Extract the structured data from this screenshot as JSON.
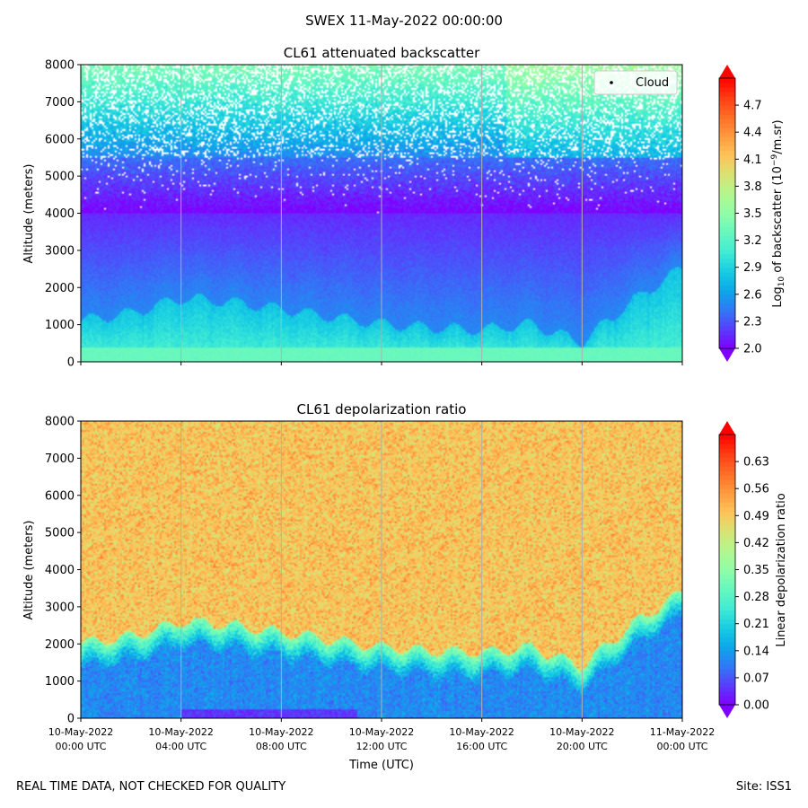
{
  "suptitle": "SWEX 11-May-2022 00:00:00",
  "footer": {
    "left": "REAL TIME DATA, NOT CHECKED FOR QUALITY",
    "right": "Site: ISS1"
  },
  "colors": {
    "rainbow": [
      "#8000ff",
      "#5a3cfd",
      "#3278f6",
      "#0ca8e9",
      "#18cde3",
      "#40ecd4",
      "#66f8bf",
      "#8ffda8",
      "#b3f88f",
      "#d8e374",
      "#fec45a",
      "#ff9b3f",
      "#ff6f28",
      "#ff3e14",
      "#ff0000"
    ],
    "grid": "#b0b0b0"
  },
  "chart_data": [
    {
      "type": "heatmap",
      "title": "CL61 attenuated backscatter",
      "xlabel": "",
      "ylabel": "Altitude (meters)",
      "ylim": [
        0,
        8000
      ],
      "yticks": [
        0,
        1000,
        2000,
        3000,
        4000,
        5000,
        6000,
        7000,
        8000
      ],
      "xlim_hours": [
        0,
        24
      ],
      "xticks_hours": [
        0,
        4,
        8,
        12,
        16,
        20,
        24
      ],
      "xtick_labels_shown": false,
      "legend": {
        "entries": [
          "Cloud"
        ],
        "location": "top-right",
        "marker": "black dot"
      },
      "colorbar": {
        "label": "Log10 of backscatter (10^-9/m.sr)",
        "label_parts": {
          "prefix": "Log",
          "base": "10",
          "mid": " of backscatter (10",
          "exp": "−9",
          "suffix": "/m.sr)"
        },
        "range": [
          2.0,
          5.0
        ],
        "ticks": [
          "2.0",
          "2.3",
          "2.6",
          "2.9",
          "3.2",
          "3.5",
          "3.8",
          "4.1",
          "4.4",
          "4.7"
        ],
        "extend": "both"
      },
      "field_description_values": {
        "boundary_layer_top_m_at_hours": {
          "hours": [
            0,
            2,
            4,
            6,
            8,
            10,
            12,
            14,
            16,
            18,
            20,
            22,
            24
          ],
          "top_m": [
            1100,
            1300,
            1700,
            1600,
            1400,
            1200,
            1000,
            900,
            850,
            1000,
            500,
            1600,
            2500
          ]
        },
        "near_surface_log10": 3.3,
        "residual_layer_log10": 2.5,
        "free_troposphere_log10": 2.0,
        "upper_noise_log10": 3.2
      }
    },
    {
      "type": "heatmap",
      "title": "CL61 depolarization ratio",
      "xlabel": "Time (UTC)",
      "ylabel": "Altitude (meters)",
      "ylim": [
        0,
        8000
      ],
      "yticks": [
        0,
        1000,
        2000,
        3000,
        4000,
        5000,
        6000,
        7000,
        8000
      ],
      "xlim_hours": [
        0,
        24
      ],
      "xticks_hours": [
        0,
        4,
        8,
        12,
        16,
        20,
        24
      ],
      "xtick_labels": [
        [
          "10-May-2022",
          "00:00 UTC"
        ],
        [
          "10-May-2022",
          "04:00 UTC"
        ],
        [
          "10-May-2022",
          "08:00 UTC"
        ],
        [
          "10-May-2022",
          "12:00 UTC"
        ],
        [
          "10-May-2022",
          "16:00 UTC"
        ],
        [
          "10-May-2022",
          "20:00 UTC"
        ],
        [
          "11-May-2022",
          "00:00 UTC"
        ]
      ],
      "colorbar": {
        "label": "Linear depolarization ratio",
        "range": [
          0.0,
          0.7
        ],
        "ticks": [
          "0.00",
          "0.07",
          "0.14",
          "0.21",
          "0.28",
          "0.35",
          "0.42",
          "0.49",
          "0.56",
          "0.63"
        ],
        "extend": "both"
      },
      "field_description_values": {
        "boundary_layer_ratio": 0.12,
        "transition_ratio": 0.35,
        "upper_ratio": 0.5,
        "low_patch_ratio": 0.02
      }
    }
  ]
}
